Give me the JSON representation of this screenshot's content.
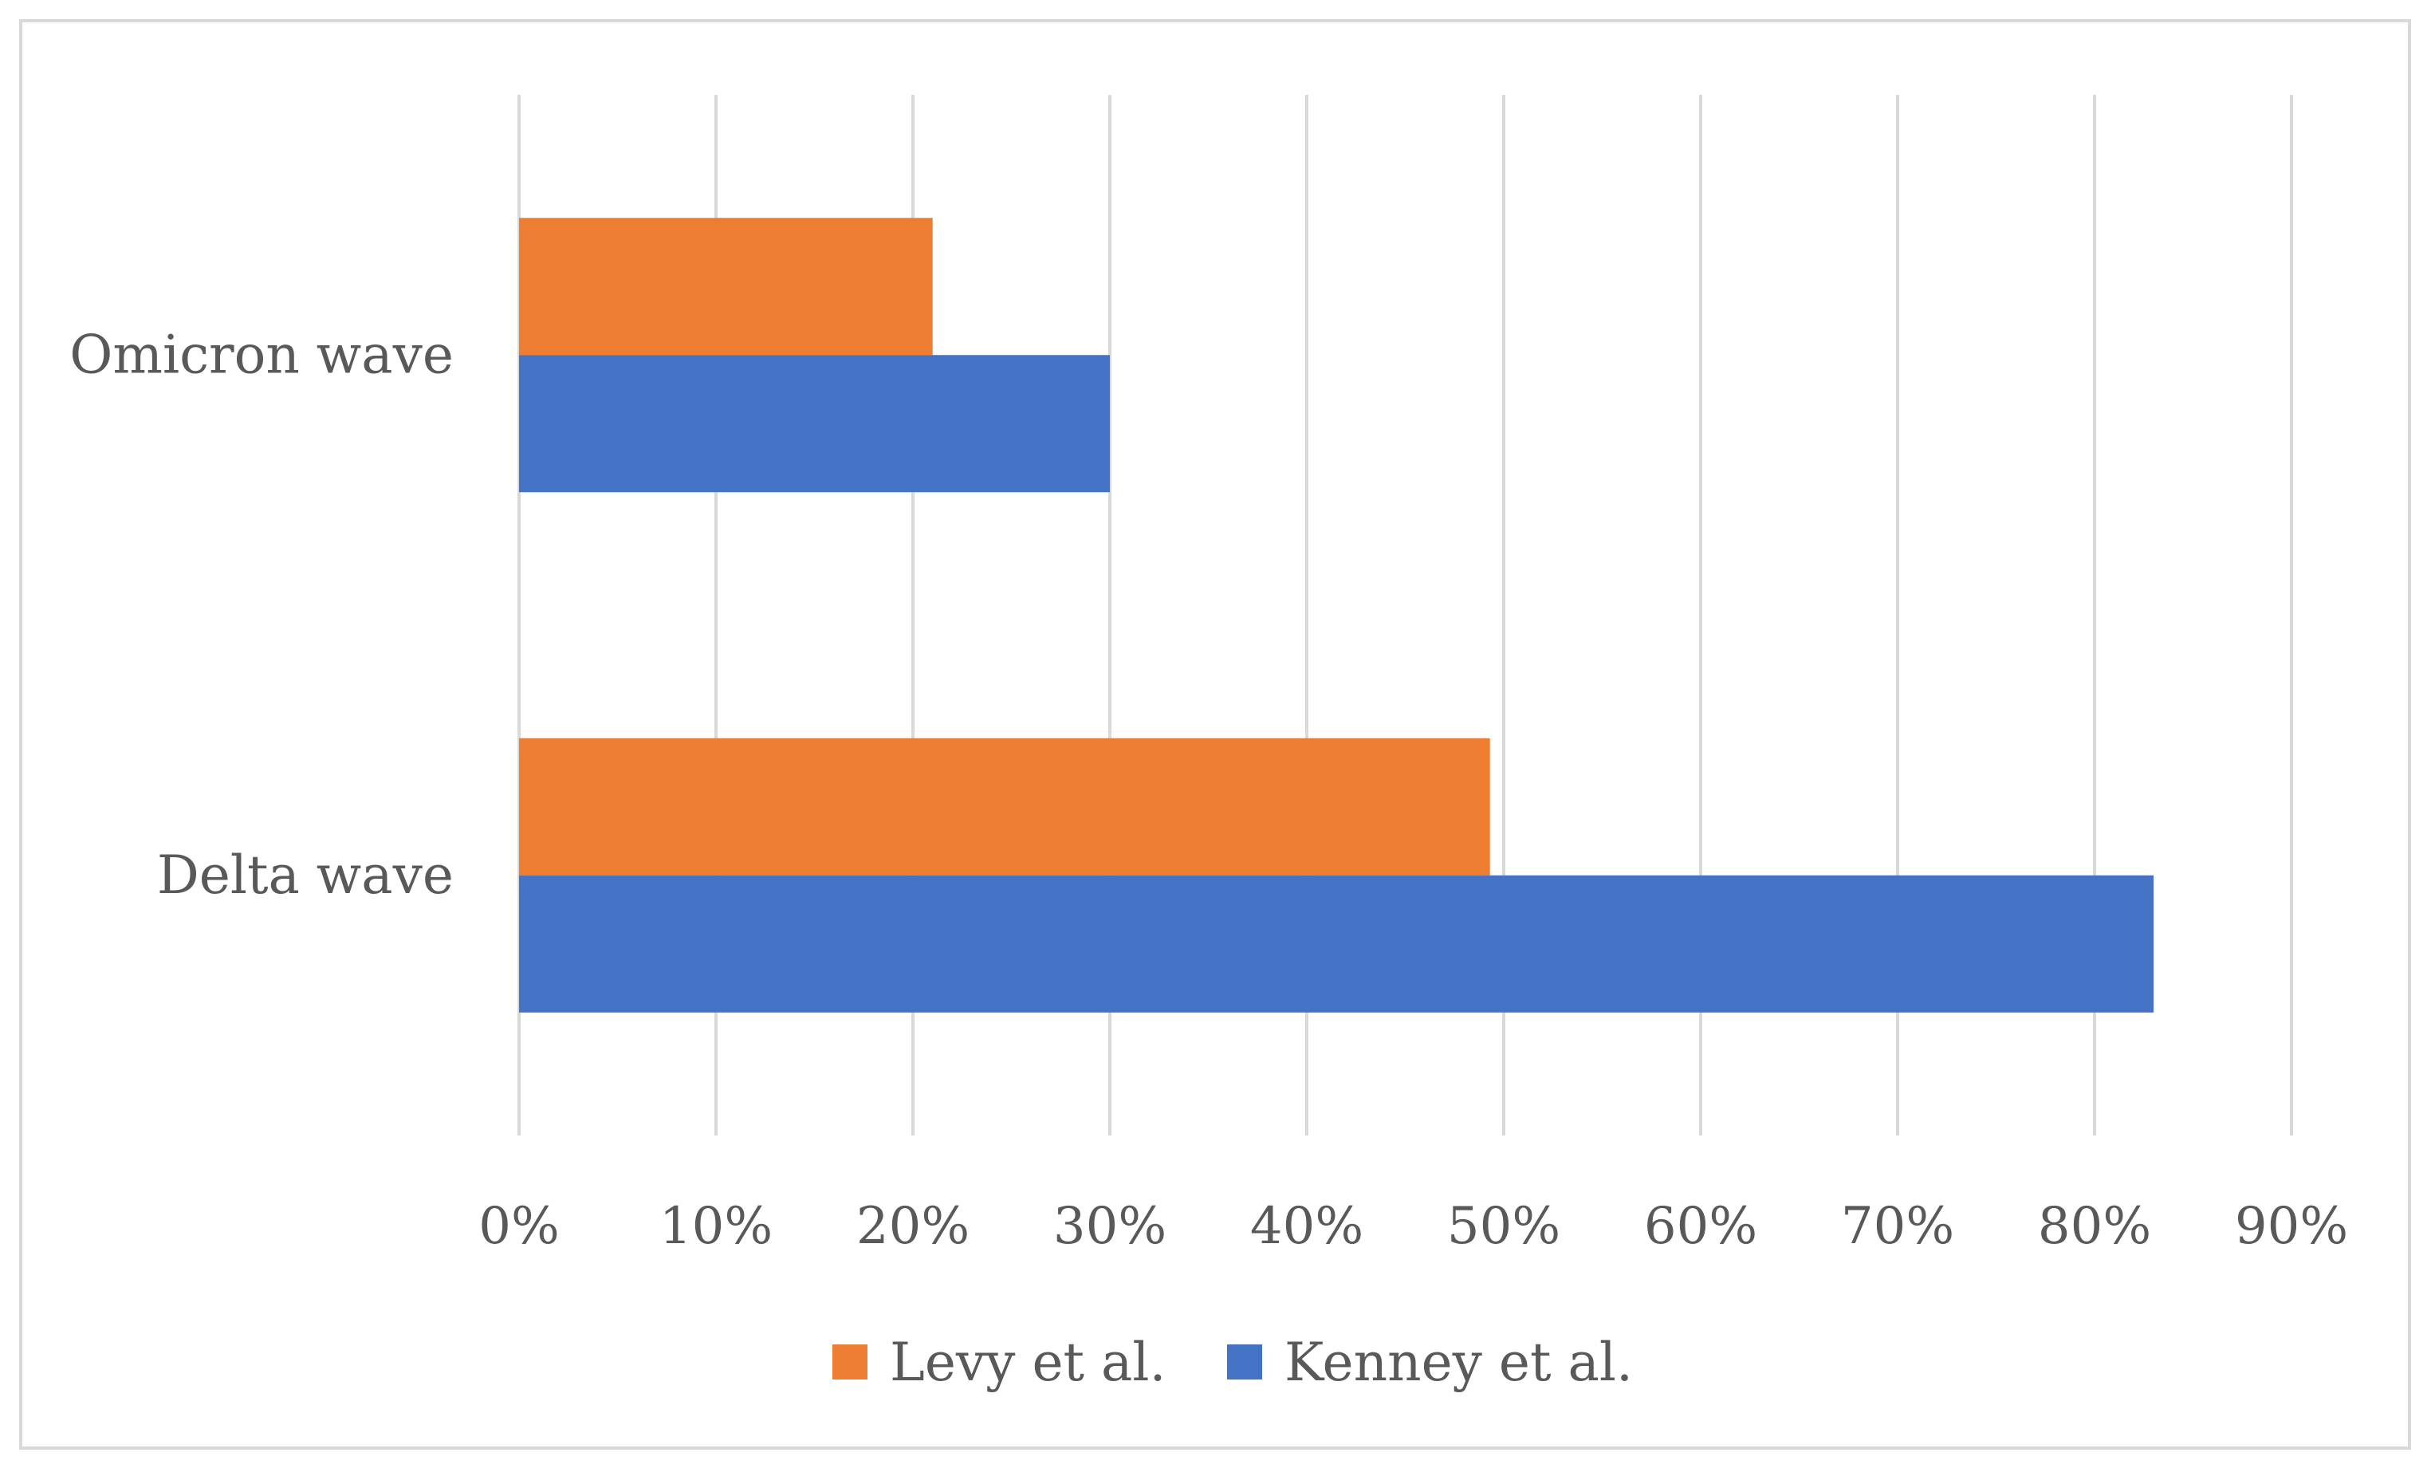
{
  "chart_data": {
    "type": "bar",
    "orientation": "horizontal",
    "categories": [
      "Omicron wave",
      "Delta wave"
    ],
    "series": [
      {
        "name": "Levy et al.",
        "color": "#ED7D31",
        "values": [
          21,
          49.3
        ]
      },
      {
        "name": "Kenney et al.",
        "color": "#4472C4",
        "values": [
          30,
          83
        ]
      }
    ],
    "x_ticks": [
      "0%",
      "10%",
      "20%",
      "30%",
      "40%",
      "50%",
      "60%",
      "70%",
      "80%",
      "90%"
    ],
    "xlim": [
      0,
      90
    ],
    "title": "",
    "xlabel": "",
    "ylabel": "",
    "grid": "vertical",
    "legend_position": "bottom"
  }
}
